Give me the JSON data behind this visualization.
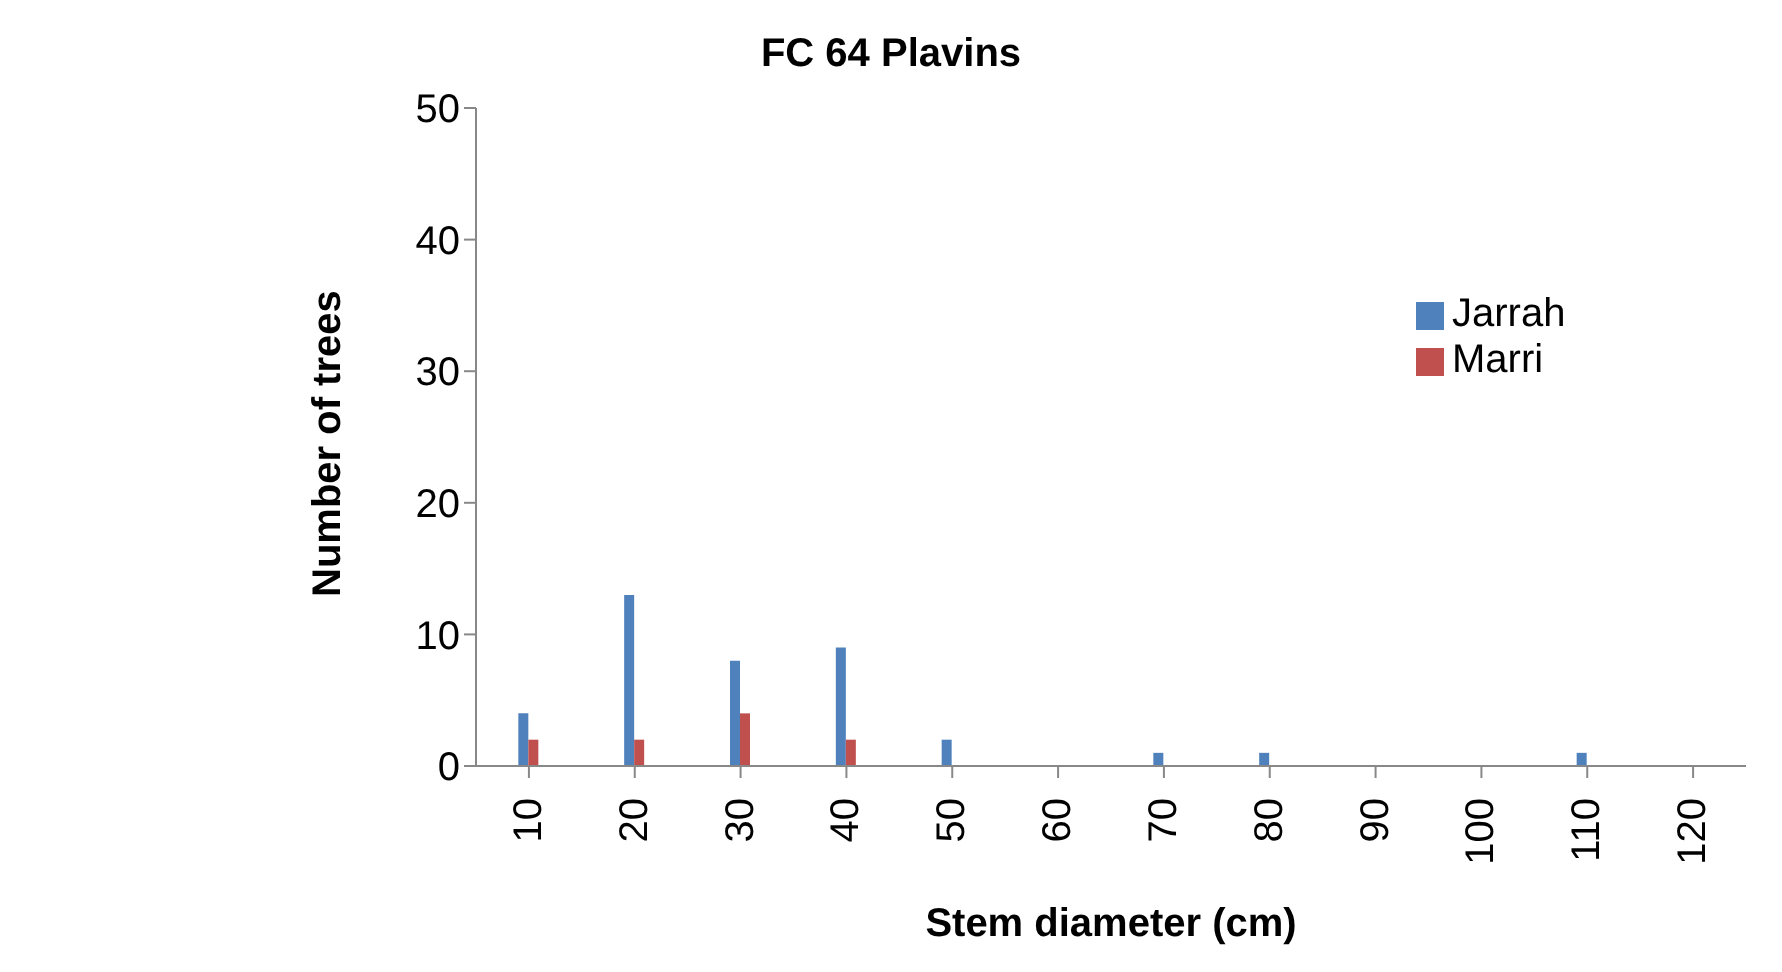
{
  "chart_data": {
    "type": "bar",
    "title": "FC 64 Plavins",
    "xlabel": "Stem diameter (cm)",
    "ylabel": "Number of trees",
    "categories": [
      "10",
      "20",
      "30",
      "40",
      "50",
      "60",
      "70",
      "80",
      "90",
      "100",
      "110",
      "120"
    ],
    "series": [
      {
        "name": "Jarrah",
        "color": "#4f81bd",
        "values": [
          4,
          13,
          8,
          9,
          2,
          0,
          1,
          1,
          0,
          0,
          1,
          0
        ]
      },
      {
        "name": "Marri",
        "color": "#c0504d",
        "values": [
          2,
          2,
          4,
          2,
          0,
          0,
          0,
          0,
          0,
          0,
          0,
          0
        ]
      }
    ],
    "ylim": [
      0,
      50
    ],
    "yticks": [
      0,
      10,
      20,
      30,
      40,
      50
    ],
    "grid": false,
    "legend": "top right"
  }
}
